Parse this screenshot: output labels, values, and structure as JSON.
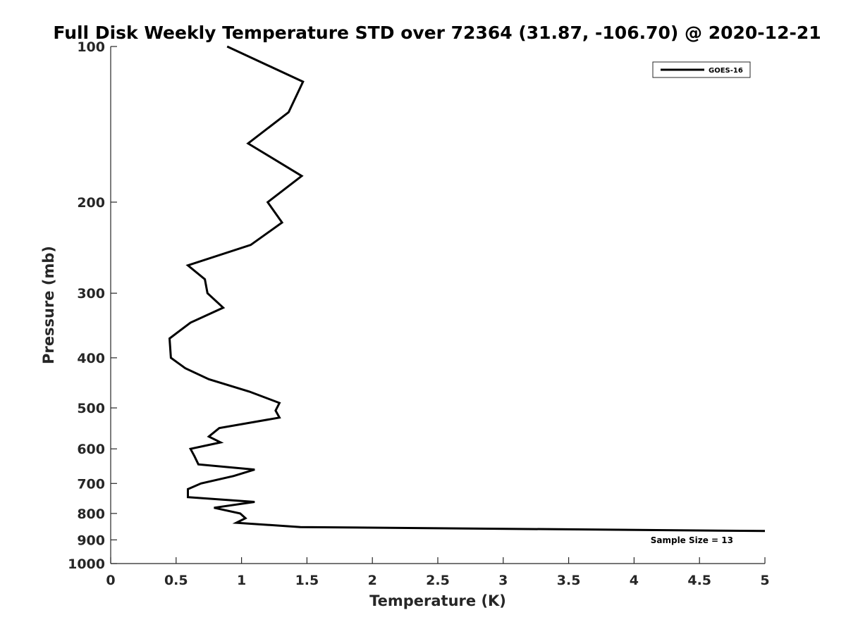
{
  "chart_data": {
    "type": "line",
    "title": "Full Disk Weekly Temperature STD over 72364 (31.87, -106.70) @ 2020-12-21",
    "xlabel": "Temperature (K)",
    "ylabel": "Pressure (mb)",
    "xlim": [
      0,
      5
    ],
    "ylim": [
      100,
      1000
    ],
    "y_scale": "log",
    "y_reversed": true,
    "x_ticks": [
      "0",
      "0.5",
      "1",
      "1.5",
      "2",
      "2.5",
      "3",
      "3.5",
      "4",
      "4.5",
      "5"
    ],
    "y_ticks": [
      "100",
      "200",
      "300",
      "400",
      "500",
      "600",
      "700",
      "800",
      "900",
      "1000"
    ],
    "grid": false,
    "legend_position": "top-right",
    "annotation": "Sample Size = 13",
    "series": [
      {
        "name": "GOES-16",
        "color": "#000000",
        "points": [
          {
            "x": 0.89,
            "p": 100
          },
          {
            "x": 1.47,
            "p": 117
          },
          {
            "x": 1.36,
            "p": 134
          },
          {
            "x": 1.05,
            "p": 154
          },
          {
            "x": 1.46,
            "p": 178
          },
          {
            "x": 1.2,
            "p": 200
          },
          {
            "x": 1.31,
            "p": 219
          },
          {
            "x": 1.07,
            "p": 242
          },
          {
            "x": 0.59,
            "p": 265
          },
          {
            "x": 0.72,
            "p": 282
          },
          {
            "x": 0.74,
            "p": 300
          },
          {
            "x": 0.86,
            "p": 320
          },
          {
            "x": 0.61,
            "p": 342
          },
          {
            "x": 0.45,
            "p": 367
          },
          {
            "x": 0.46,
            "p": 400
          },
          {
            "x": 0.57,
            "p": 419
          },
          {
            "x": 0.75,
            "p": 440
          },
          {
            "x": 1.06,
            "p": 465
          },
          {
            "x": 1.29,
            "p": 489
          },
          {
            "x": 1.26,
            "p": 506
          },
          {
            "x": 1.29,
            "p": 522
          },
          {
            "x": 0.83,
            "p": 547
          },
          {
            "x": 0.75,
            "p": 568
          },
          {
            "x": 0.84,
            "p": 583
          },
          {
            "x": 0.61,
            "p": 600
          },
          {
            "x": 0.64,
            "p": 620
          },
          {
            "x": 0.67,
            "p": 643
          },
          {
            "x": 1.1,
            "p": 658
          },
          {
            "x": 0.94,
            "p": 677
          },
          {
            "x": 0.69,
            "p": 700
          },
          {
            "x": 0.59,
            "p": 718
          },
          {
            "x": 0.59,
            "p": 744
          },
          {
            "x": 1.1,
            "p": 760
          },
          {
            "x": 0.79,
            "p": 780
          },
          {
            "x": 0.99,
            "p": 800
          },
          {
            "x": 1.03,
            "p": 817
          },
          {
            "x": 0.96,
            "p": 834
          },
          {
            "x": 1.45,
            "p": 850
          },
          {
            "x": 5.0,
            "p": 865
          }
        ]
      }
    ]
  }
}
